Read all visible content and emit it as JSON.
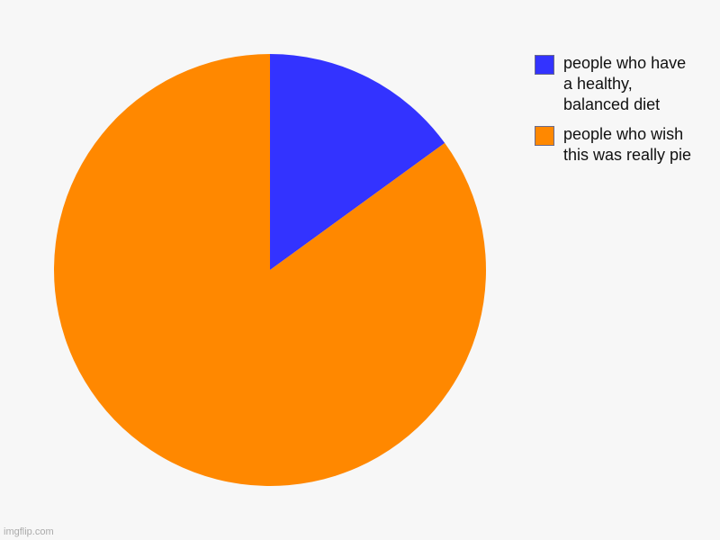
{
  "chart_data": {
    "type": "pie",
    "title": "",
    "start_angle_deg": -90,
    "direction": "clockwise",
    "legend_position": "top-right",
    "slices": [
      {
        "name": "people who have\na healthy,\nbalanced diet",
        "value": 15,
        "color": "#3333ff"
      },
      {
        "name": "people who wish\nthis was really pie",
        "value": 85,
        "color": "#ff8800"
      }
    ]
  },
  "watermark": "imgflip.com"
}
